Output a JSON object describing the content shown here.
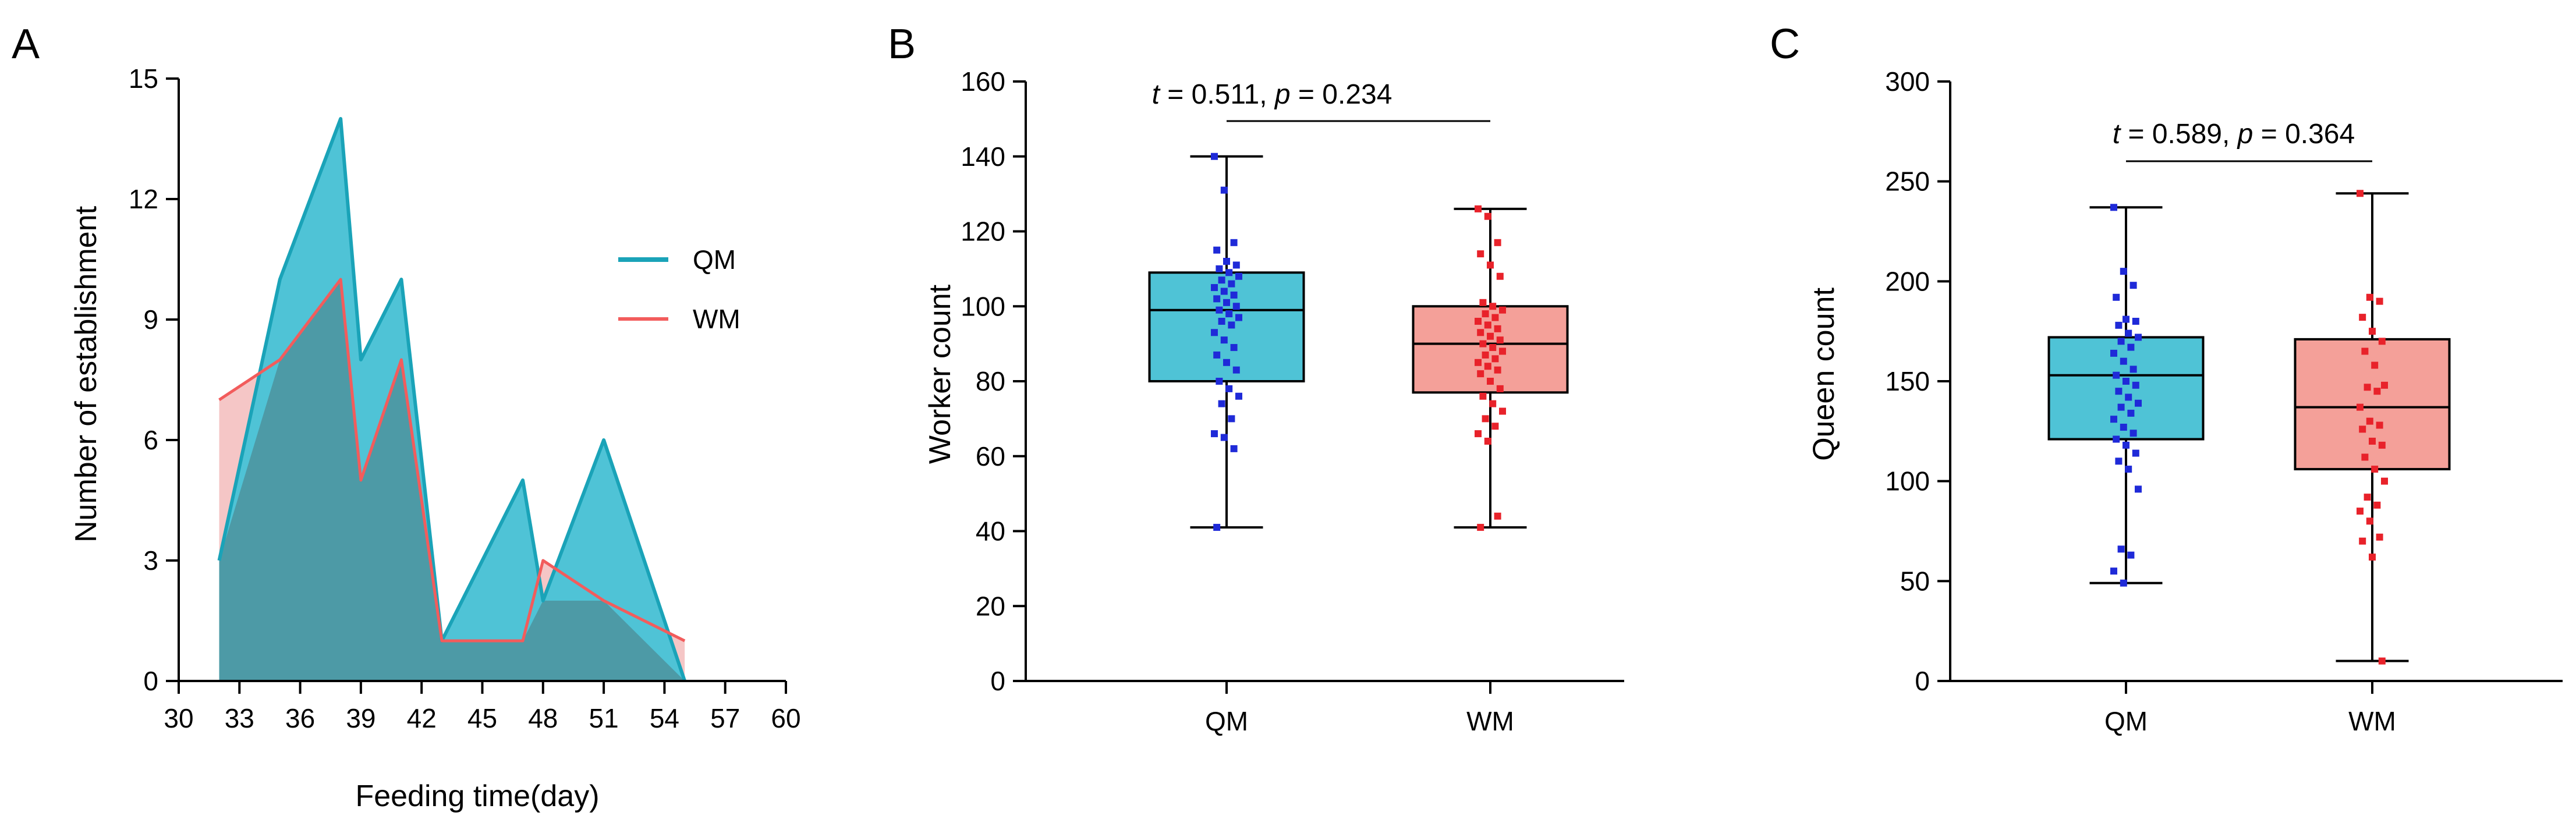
{
  "figure": {
    "panel_letters": [
      "A",
      "B",
      "C"
    ]
  },
  "colors": {
    "qm_stroke": "#1aa3b8",
    "qm_fill": "#4fc3d6",
    "qm_points": "#1f2ad8",
    "wm_stroke": "#f25c5c",
    "wm_fill": "#f5c6c6",
    "wm_box_fill": "#f4a099",
    "wm_points": "#e8222a",
    "overlap_fill": "#4d9aa6"
  },
  "chart_data": [
    {
      "panel": "A",
      "type": "area",
      "title": "",
      "xlabel": "Feeding time(day)",
      "ylabel": "Number of establishment",
      "xlim": [
        30,
        60
      ],
      "ylim": [
        0,
        15
      ],
      "xticks": [
        30,
        33,
        36,
        39,
        42,
        45,
        48,
        51,
        54,
        57,
        60
      ],
      "yticks": [
        0,
        3,
        6,
        9,
        12,
        15
      ],
      "grid": false,
      "legend_position": "right",
      "series": [
        {
          "name": "QM",
          "color": "#1aa3b8",
          "x": [
            32,
            35,
            38,
            39,
            41,
            43,
            47,
            48,
            51,
            55
          ],
          "y": [
            3,
            10,
            14,
            8,
            10,
            1,
            5,
            2,
            6,
            0
          ]
        },
        {
          "name": "WM",
          "color": "#f25c5c",
          "x": [
            32,
            35,
            38,
            39,
            41,
            43,
            47,
            48,
            51,
            55
          ],
          "y": [
            7,
            8,
            10,
            5,
            8,
            1,
            1,
            3,
            2,
            1
          ]
        }
      ]
    },
    {
      "panel": "B",
      "type": "box",
      "ylabel": "Worker count",
      "xlabel": "",
      "ylim": [
        0,
        160
      ],
      "yticks": [
        0,
        20,
        40,
        60,
        80,
        100,
        120,
        140,
        160
      ],
      "categories": [
        "QM",
        "WM"
      ],
      "stat_t": "t",
      "stat_t_value": " = 0.511, ",
      "stat_p": "p",
      "stat_p_value": " = 0.234",
      "boxes": [
        {
          "name": "QM",
          "min": 41,
          "q1": 80,
          "median": 99,
          "q3": 109,
          "max": 140,
          "points": [
            140,
            131,
            117,
            115,
            112,
            111,
            110,
            109,
            108,
            107,
            106,
            105,
            104,
            103,
            102,
            101,
            100,
            99,
            98,
            97,
            96,
            95,
            93,
            91,
            89,
            87,
            85,
            83,
            80,
            78,
            76,
            74,
            70,
            66,
            65,
            62,
            41
          ]
        },
        {
          "name": "WM",
          "min": 41,
          "q1": 77,
          "median": 90,
          "q3": 100,
          "max": 126,
          "points": [
            126,
            124,
            117,
            114,
            111,
            108,
            101,
            100,
            99,
            98,
            97,
            96,
            95,
            94,
            93,
            92,
            91,
            90,
            89,
            88,
            87,
            86,
            85,
            84,
            83,
            82,
            80,
            78,
            76,
            74,
            72,
            70,
            68,
            66,
            64,
            44,
            41
          ]
        }
      ]
    },
    {
      "panel": "C",
      "type": "box",
      "ylabel": "Queen count",
      "xlabel": "",
      "ylim": [
        0,
        300
      ],
      "yticks": [
        0,
        50,
        100,
        150,
        200,
        250,
        300
      ],
      "categories": [
        "QM",
        "WM"
      ],
      "stat_t": "t",
      "stat_t_value": " = 0.589, ",
      "stat_p": "p",
      "stat_p_value": " = 0.364",
      "boxes": [
        {
          "name": "QM",
          "min": 49,
          "q1": 121,
          "median": 153,
          "q3": 172,
          "max": 237,
          "points": [
            237,
            205,
            198,
            192,
            181,
            180,
            178,
            174,
            172,
            170,
            167,
            164,
            160,
            156,
            153,
            150,
            148,
            145,
            142,
            139,
            137,
            134,
            131,
            127,
            124,
            121,
            118,
            114,
            110,
            106,
            96,
            66,
            63,
            55,
            49
          ]
        },
        {
          "name": "WM",
          "min": 10,
          "q1": 106,
          "median": 137,
          "q3": 171,
          "max": 244,
          "points": [
            244,
            192,
            190,
            182,
            175,
            170,
            165,
            158,
            148,
            147,
            145,
            137,
            130,
            128,
            126,
            120,
            118,
            112,
            106,
            100,
            92,
            88,
            85,
            80,
            72,
            70,
            62,
            10
          ]
        }
      ]
    }
  ]
}
